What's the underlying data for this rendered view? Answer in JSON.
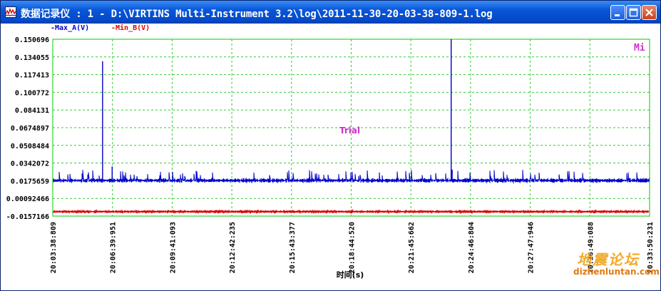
{
  "window": {
    "title": "数据记录仪 : 1 - D:\\VIRTINS Multi-Instrument 3.2\\log\\2011-11-30-20-03-38-809-1.log",
    "icon": "chart-window-icon"
  },
  "titlebar_buttons": [
    {
      "name": "minimize-button",
      "icon": "minimize-icon"
    },
    {
      "name": "maximize-button",
      "icon": "maximize-icon"
    },
    {
      "name": "close-button",
      "icon": "close-icon"
    }
  ],
  "colors": {
    "plot_border": "#00cc00",
    "grid": "#33cc33",
    "series_a": "#0000cc",
    "series_b": "#dd0000",
    "trial": "#cc33cc",
    "mi": "#cc33cc"
  },
  "chart_data": {
    "type": "line",
    "xlabel": "时间(s)",
    "ylabel": "",
    "ylim": [
      -0.0157166,
      0.150696
    ],
    "y_ticks": [
      "0.150696",
      "0.134055",
      "0.117413",
      "0.100772",
      "0.084131",
      "0.0674897",
      "0.0508484",
      "0.0342072",
      "0.0175659",
      "0.00092466",
      "-0.0157166"
    ],
    "x_ticks": [
      "20:03:38:809",
      "20:06:39:951",
      "20:09:41:093",
      "20:12:42:235",
      "20:15:43:377",
      "20:18:44:520",
      "20:21:45:662",
      "20:24:46:804",
      "20:27:47:946",
      "20:30:49:088",
      "20:33:50:231"
    ],
    "grid": true,
    "annotation": "Trial",
    "corner_label": "Mi",
    "series": [
      {
        "name": "-Max_A(V)",
        "baseline": 0.0178,
        "noise": 0.002,
        "spikes": [
          {
            "x": "20:06:10",
            "y": 0.13
          },
          {
            "x": "20:06:39",
            "y": 0.031
          },
          {
            "x": "20:23:48",
            "y": 0.150696
          },
          {
            "x": "20:23:51",
            "y": 0.028
          }
        ]
      },
      {
        "name": "-Min_B(V)",
        "baseline": -0.0115,
        "noise": 0.0006,
        "spikes": []
      }
    ]
  },
  "watermark": {
    "text_cn": "地震论坛",
    "url": "dizhenluntan.com"
  }
}
